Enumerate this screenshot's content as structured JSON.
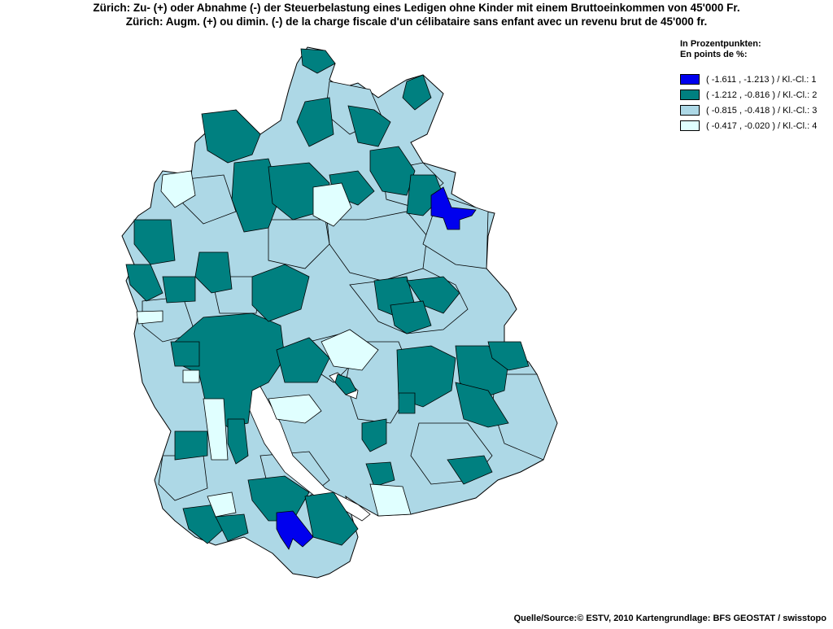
{
  "title": {
    "line1": "Zürich: Zu- (+) oder Abnahme (-) der Steuerbelastung eines Ledigen ohne Kinder mit einem Bruttoeinkommen von 45'000 Fr.",
    "line2": "Zürich: Augm. (+) ou dimin. (-) de la charge fiscale d'un célibataire sans enfant avec un revenu brut de 45'000 fr."
  },
  "legend": {
    "header_de": "In Prozentpunkten:",
    "header_fr": "En points de %:",
    "classes": [
      {
        "label": "( -1.611 , -1.213 ) / Kl.-Cl.: 1",
        "color": "#0000ee"
      },
      {
        "label": "( -1.212 , -0.816 ) / Kl.-Cl.: 2",
        "color": "#008080"
      },
      {
        "label": "( -0.815 , -0.418 ) / Kl.-Cl.: 3",
        "color": "#add8e6"
      },
      {
        "label": "( -0.417 , -0.020 ) / Kl.-Cl.: 4",
        "color": "#e0ffff"
      }
    ]
  },
  "lake_color": "#ffffff",
  "border_color": "#000000",
  "source": "Quelle/Source:© ESTV, 2010 Kartengrundlage: BFS GEOSTAT / swisstopo"
}
